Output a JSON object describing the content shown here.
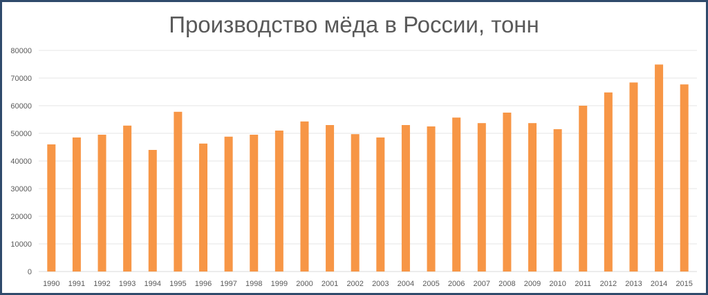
{
  "chart_data": {
    "type": "bar",
    "title": "Производство мёда в России, тонн",
    "xlabel": "",
    "ylabel": "",
    "ylim": [
      0,
      80000
    ],
    "yticks": [
      0,
      10000,
      20000,
      30000,
      40000,
      50000,
      60000,
      70000,
      80000
    ],
    "grid": true,
    "legend": "none",
    "bar_color": "#f79646",
    "categories": [
      "1990",
      "1991",
      "1992",
      "1993",
      "1994",
      "1995",
      "1996",
      "1997",
      "1998",
      "1999",
      "2000",
      "2001",
      "2002",
      "2003",
      "2004",
      "2005",
      "2006",
      "2007",
      "2008",
      "2009",
      "2010",
      "2011",
      "2012",
      "2013",
      "2014",
      "2015"
    ],
    "values": [
      46000,
      48500,
      49500,
      52800,
      44000,
      57800,
      46300,
      48800,
      49500,
      51000,
      54300,
      53000,
      49700,
      48500,
      53000,
      52500,
      55700,
      53700,
      57500,
      53700,
      51500,
      60000,
      64800,
      68400,
      74900,
      67700
    ]
  }
}
